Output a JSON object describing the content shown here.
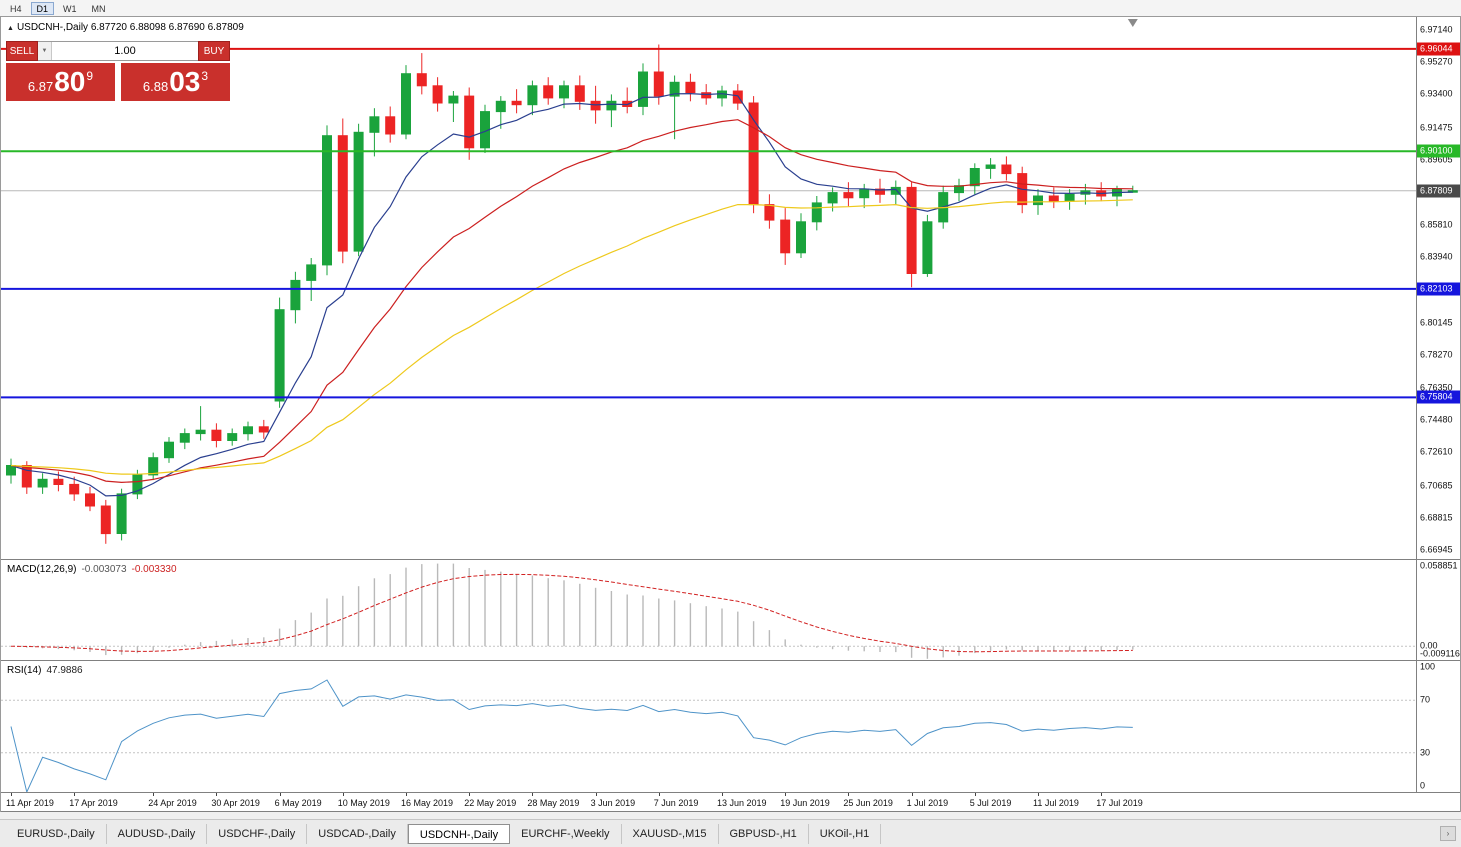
{
  "toolbar": {
    "timeframes": [
      {
        "label": "H4",
        "active": false
      },
      {
        "label": "D1",
        "active": true
      },
      {
        "label": "W1",
        "active": false
      },
      {
        "label": "MN",
        "active": false
      }
    ]
  },
  "main_chart": {
    "title_icon": "▲",
    "title": "USDCNH-,Daily 6.87720 6.88098 6.87690 6.87809"
  },
  "trade_panel": {
    "sell_label": "SELL",
    "buy_label": "BUY",
    "volume": "1.00",
    "dropdown_icon": "▼",
    "sell_price_head": "6.87",
    "sell_price_big": "80",
    "sell_price_sup": "9",
    "buy_price_head": "6.88",
    "buy_price_big": "03",
    "buy_price_sup": "3",
    "accent_color": "#c9302c"
  },
  "macd_panel": {
    "label": "MACD(12,26,9)",
    "value_main": "-0.003073",
    "value_signal": "-0.003330",
    "axis_labels": [
      {
        "text": "0.058851",
        "value": 0.058851
      },
      {
        "text": "0.00",
        "value": 0
      },
      {
        "text": "-0.009116",
        "value": -0.009116
      }
    ]
  },
  "rsi_panel": {
    "label": "RSI(14)",
    "value": "47.9886",
    "levels": [
      70,
      30
    ],
    "axis_labels": [
      {
        "text": "100",
        "value": 100
      },
      {
        "text": "70",
        "value": 70
      },
      {
        "text": "30",
        "value": 30
      },
      {
        "text": "0",
        "value": 0
      }
    ]
  },
  "chart_data": {
    "type": "candlestick",
    "symbol": "USDCNH-",
    "timeframe": "Daily",
    "candle_colors": {
      "up": "#1aa33c",
      "down": "#ec2424"
    },
    "price_axis": {
      "min": 6.6642,
      "max": 6.97895,
      "ticks": [
        "6.97140",
        "6.95270",
        "6.93400",
        "6.91475",
        "6.89605",
        "6.85810",
        "6.83940",
        "6.80145",
        "6.78270",
        "6.76350",
        "6.74480",
        "6.72610",
        "6.70685",
        "6.68815",
        "6.66945"
      ]
    },
    "levels": [
      {
        "price": 6.96044,
        "label": "6.96044",
        "color": "#dd1111"
      },
      {
        "price": 6.901,
        "label": "6.90100",
        "color": "#28b828"
      },
      {
        "price": 6.82103,
        "label": "6.82103",
        "color": "#1515dd"
      },
      {
        "price": 6.75804,
        "label": "6.75804",
        "color": "#1515dd"
      }
    ],
    "bid": {
      "price": 6.87809,
      "label": "6.87809",
      "color": "#4a4a4a"
    },
    "moving_averages": [
      {
        "period": 8,
        "color": "#2a3f8f"
      },
      {
        "period": 20,
        "color": "#cc2020"
      },
      {
        "period": 45,
        "color": "#eec91c"
      }
    ],
    "macd": {
      "fast": 12,
      "slow": 26,
      "signal": 9,
      "range": [
        -0.0095,
        0.0595
      ]
    },
    "rsi": {
      "period": 14,
      "range": [
        0,
        100
      ]
    },
    "dates": [
      "11 Apr 2019",
      "12 Apr 2019",
      "15 Apr 2019",
      "16 Apr 2019",
      "17 Apr 2019",
      "18 Apr 2019",
      "19 Apr 2019",
      "22 Apr 2019",
      "23 Apr 2019",
      "24 Apr 2019",
      "25 Apr 2019",
      "26 Apr 2019",
      "29 Apr 2019",
      "30 Apr 2019",
      "1 May 2019",
      "2 May 2019",
      "3 May 2019",
      "6 May 2019",
      "7 May 2019",
      "8 May 2019",
      "9 May 2019",
      "10 May 2019",
      "13 May 2019",
      "14 May 2019",
      "15 May 2019",
      "16 May 2019",
      "17 May 2019",
      "20 May 2019",
      "21 May 2019",
      "22 May 2019",
      "23 May 2019",
      "24 May 2019",
      "27 May 2019",
      "28 May 2019",
      "29 May 2019",
      "30 May 2019",
      "31 May 2019",
      "3 Jun 2019",
      "4 Jun 2019",
      "5 Jun 2019",
      "6 Jun 2019",
      "7 Jun 2019",
      "10 Jun 2019",
      "11 Jun 2019",
      "12 Jun 2019",
      "13 Jun 2019",
      "14 Jun 2019",
      "17 Jun 2019",
      "18 Jun 2019",
      "19 Jun 2019",
      "20 Jun 2019",
      "21 Jun 2019",
      "24 Jun 2019",
      "25 Jun 2019",
      "26 Jun 2019",
      "27 Jun 2019",
      "28 Jun 2019",
      "1 Jul 2019",
      "2 Jul 2019",
      "3 Jul 2019",
      "4 Jul 2019",
      "5 Jul 2019",
      "8 Jul 2019",
      "9 Jul 2019",
      "10 Jul 2019",
      "11 Jul 2019",
      "12 Jul 2019",
      "15 Jul 2019",
      "16 Jul 2019",
      "17 Jul 2019",
      "18 Jul 2019",
      "19 Jul 2019"
    ],
    "ohlc": [
      [
        6.713,
        6.7225,
        6.708,
        6.7185
      ],
      [
        6.7185,
        6.721,
        6.702,
        6.706
      ],
      [
        6.706,
        6.714,
        6.702,
        6.7105
      ],
      [
        6.7105,
        6.715,
        6.7035,
        6.7075
      ],
      [
        6.7075,
        6.712,
        6.698,
        6.702
      ],
      [
        6.702,
        6.706,
        6.692,
        6.695
      ],
      [
        6.695,
        6.6985,
        6.673,
        6.679
      ],
      [
        6.679,
        6.705,
        6.675,
        6.702
      ],
      [
        6.702,
        6.716,
        6.699,
        6.713
      ],
      [
        6.713,
        6.726,
        6.71,
        6.723
      ],
      [
        6.723,
        6.735,
        6.72,
        6.732
      ],
      [
        6.732,
        6.74,
        6.728,
        6.737
      ],
      [
        6.737,
        6.753,
        6.733,
        6.739
      ],
      [
        6.739,
        6.743,
        6.729,
        6.733
      ],
      [
        6.733,
        6.74,
        6.73,
        6.737
      ],
      [
        6.737,
        6.744,
        6.733,
        6.741
      ],
      [
        6.741,
        6.745,
        6.734,
        6.738
      ],
      [
        6.756,
        6.816,
        6.752,
        6.809
      ],
      [
        6.809,
        6.831,
        6.801,
        6.826
      ],
      [
        6.826,
        6.839,
        6.814,
        6.835
      ],
      [
        6.835,
        6.916,
        6.829,
        6.91
      ],
      [
        6.91,
        6.92,
        6.836,
        6.843
      ],
      [
        6.843,
        6.917,
        6.84,
        6.912
      ],
      [
        6.912,
        6.926,
        6.898,
        6.921
      ],
      [
        6.921,
        6.927,
        6.906,
        6.911
      ],
      [
        6.911,
        6.951,
        6.908,
        6.946
      ],
      [
        6.946,
        6.958,
        6.934,
        6.939
      ],
      [
        6.939,
        6.944,
        6.924,
        6.929
      ],
      [
        6.929,
        6.936,
        6.918,
        6.933
      ],
      [
        6.933,
        6.938,
        6.896,
        6.903
      ],
      [
        6.903,
        6.928,
        6.9,
        6.924
      ],
      [
        6.924,
        6.933,
        6.914,
        6.93
      ],
      [
        6.93,
        6.937,
        6.923,
        6.928
      ],
      [
        6.928,
        6.942,
        6.922,
        6.939
      ],
      [
        6.939,
        6.944,
        6.928,
        6.932
      ],
      [
        6.932,
        6.942,
        6.926,
        6.939
      ],
      [
        6.939,
        6.945,
        6.925,
        6.93
      ],
      [
        6.93,
        6.939,
        6.917,
        6.925
      ],
      [
        6.925,
        6.934,
        6.915,
        6.93
      ],
      [
        6.93,
        6.938,
        6.923,
        6.927
      ],
      [
        6.927,
        6.952,
        6.922,
        6.947
      ],
      [
        6.947,
        6.963,
        6.928,
        6.933
      ],
      [
        6.933,
        6.945,
        6.908,
        6.941
      ],
      [
        6.941,
        6.946,
        6.93,
        6.935
      ],
      [
        6.935,
        6.94,
        6.928,
        6.932
      ],
      [
        6.932,
        6.939,
        6.927,
        6.936
      ],
      [
        6.936,
        6.94,
        6.925,
        6.929
      ],
      [
        6.929,
        6.933,
        6.865,
        6.87
      ],
      [
        6.87,
        6.876,
        6.856,
        6.861
      ],
      [
        6.861,
        6.868,
        6.835,
        6.842
      ],
      [
        6.842,
        6.865,
        6.839,
        6.86
      ],
      [
        6.86,
        6.875,
        6.855,
        6.871
      ],
      [
        6.871,
        6.88,
        6.866,
        6.877
      ],
      [
        6.877,
        6.883,
        6.869,
        6.874
      ],
      [
        6.874,
        6.882,
        6.868,
        6.879
      ],
      [
        6.879,
        6.885,
        6.871,
        6.876
      ],
      [
        6.876,
        6.884,
        6.87,
        6.88
      ],
      [
        6.88,
        6.883,
        6.822,
        6.83
      ],
      [
        6.83,
        6.864,
        6.828,
        6.86
      ],
      [
        6.86,
        6.881,
        6.856,
        6.877
      ],
      [
        6.877,
        6.885,
        6.872,
        6.881
      ],
      [
        6.881,
        6.894,
        6.876,
        6.891
      ],
      [
        6.891,
        6.897,
        6.885,
        6.893
      ],
      [
        6.893,
        6.898,
        6.884,
        6.888
      ],
      [
        6.888,
        6.892,
        6.865,
        6.87
      ],
      [
        6.87,
        6.879,
        6.864,
        6.875
      ],
      [
        6.875,
        6.88,
        6.868,
        6.872
      ],
      [
        6.872,
        6.879,
        6.867,
        6.876
      ],
      [
        6.876,
        6.882,
        6.87,
        6.878
      ],
      [
        6.878,
        6.883,
        6.872,
        6.875
      ],
      [
        6.875,
        6.881,
        6.869,
        6.879
      ],
      [
        6.8772,
        6.88098,
        6.8769,
        6.87809
      ]
    ],
    "time_ticks": [
      {
        "index": 0,
        "label": "11 Apr 2019"
      },
      {
        "index": 4,
        "label": "17 Apr 2019"
      },
      {
        "index": 9,
        "label": "24 Apr 2019"
      },
      {
        "index": 13,
        "label": "30 Apr 2019"
      },
      {
        "index": 17,
        "label": "6 May 2019"
      },
      {
        "index": 21,
        "label": "10 May 2019"
      },
      {
        "index": 25,
        "label": "16 May 2019"
      },
      {
        "index": 29,
        "label": "22 May 2019"
      },
      {
        "index": 33,
        "label": "28 May 2019"
      },
      {
        "index": 37,
        "label": "3 Jun 2019"
      },
      {
        "index": 41,
        "label": "7 Jun 2019"
      },
      {
        "index": 45,
        "label": "13 Jun 2019"
      },
      {
        "index": 49,
        "label": "19 Jun 2019"
      },
      {
        "index": 53,
        "label": "25 Jun 2019"
      },
      {
        "index": 57,
        "label": "1 Jul 2019"
      },
      {
        "index": 61,
        "label": "5 Jul 2019"
      },
      {
        "index": 65,
        "label": "11 Jul 2019"
      },
      {
        "index": 69,
        "label": "17 Jul 2019"
      }
    ]
  },
  "tabs": [
    {
      "label": "EURUSD-,Daily",
      "active": false
    },
    {
      "label": "AUDUSD-,Daily",
      "active": false
    },
    {
      "label": "USDCHF-,Daily",
      "active": false
    },
    {
      "label": "USDCAD-,Daily",
      "active": false
    },
    {
      "label": "USDCNH-,Daily",
      "active": true
    },
    {
      "label": "EURCHF-,Weekly",
      "active": false
    },
    {
      "label": "XAUUSD-,M15",
      "active": false
    },
    {
      "label": "GBPUSD-,H1",
      "active": false
    },
    {
      "label": "UKOil-,H1",
      "active": false
    }
  ],
  "tab_scroll_icon": "›"
}
